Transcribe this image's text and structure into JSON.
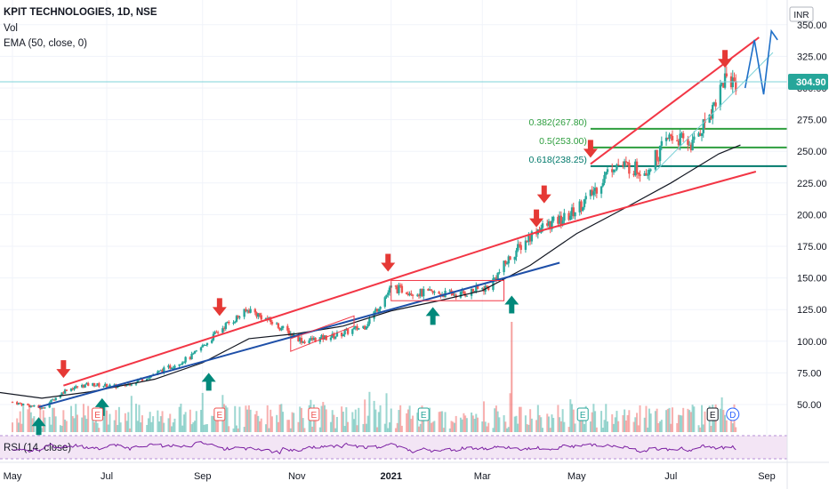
{
  "legend": {
    "title": "KPIT TECHNOLOGIES, 1D, NSE",
    "volume": "Vol",
    "ema": "EMA (50, close, 0)"
  },
  "rsi_label": "RSI (14, close)",
  "currency": "INR",
  "last_price_label": "304.90",
  "fib_labels": [
    "0.382(267.80)",
    "0.5(253.00)",
    "0.618(238.25)"
  ],
  "event_labels": [
    "E",
    "E",
    "E",
    "E",
    "E",
    "E",
    "D"
  ],
  "colors": {
    "up": "#26a69a",
    "down": "#ef5350",
    "ema": "#131722",
    "trend_red": "#f23645",
    "trend_blue": "#1e4fa8",
    "fib": "#2e9e3e",
    "fib_teal": "#00796b",
    "arrow_down": "#e53935",
    "arrow_up": "#00897b",
    "projection": "#1e6fc8",
    "price_line": "#7fd3d8",
    "last_price_bg": "#26a69a",
    "rsi": "#7b1fa2",
    "rsi_band": "#f3e5f5"
  },
  "chart_data": {
    "type": "candlestick",
    "symbol": "KPIT TECHNOLOGIES",
    "interval": "1D",
    "exchange": "NSE",
    "y_axis": {
      "ticks": [
        50.0,
        75.0,
        100.0,
        125.0,
        150.0,
        175.0,
        200.0,
        225.0,
        250.0,
        275.0,
        300.0,
        325.0,
        350.0
      ],
      "range": [
        38,
        358
      ],
      "unit": "INR"
    },
    "x_axis": {
      "ticks": [
        "May",
        "Jul",
        "Sep",
        "Nov",
        "2021",
        "Mar",
        "May",
        "Jul",
        "Sep"
      ]
    },
    "last_price": 304.9,
    "close_series": [
      {
        "x": "2020-05-01",
        "y": 52
      },
      {
        "x": "2020-05-20",
        "y": 47
      },
      {
        "x": "2020-06-05",
        "y": 62
      },
      {
        "x": "2020-06-20",
        "y": 66
      },
      {
        "x": "2020-07-10",
        "y": 64
      },
      {
        "x": "2020-08-01",
        "y": 74
      },
      {
        "x": "2020-08-25",
        "y": 88
      },
      {
        "x": "2020-09-15",
        "y": 112
      },
      {
        "x": "2020-10-01",
        "y": 125
      },
      {
        "x": "2020-10-20",
        "y": 112
      },
      {
        "x": "2020-11-05",
        "y": 100
      },
      {
        "x": "2020-11-25",
        "y": 104
      },
      {
        "x": "2020-12-15",
        "y": 112
      },
      {
        "x": "2021-01-01",
        "y": 142
      },
      {
        "x": "2021-01-20",
        "y": 138
      },
      {
        "x": "2021-02-15",
        "y": 137
      },
      {
        "x": "2021-03-05",
        "y": 143
      },
      {
        "x": "2021-03-20",
        "y": 168
      },
      {
        "x": "2021-04-05",
        "y": 188
      },
      {
        "x": "2021-04-25",
        "y": 198
      },
      {
        "x": "2021-05-10",
        "y": 215
      },
      {
        "x": "2021-05-25",
        "y": 240
      },
      {
        "x": "2021-06-15",
        "y": 235
      },
      {
        "x": "2021-07-01",
        "y": 262
      },
      {
        "x": "2021-07-15",
        "y": 255
      },
      {
        "x": "2021-07-28",
        "y": 285
      },
      {
        "x": "2021-08-05",
        "y": 308
      },
      {
        "x": "2021-08-12",
        "y": 304.9
      }
    ],
    "ema_50": [
      {
        "x": "2020-04-20",
        "y": 60
      },
      {
        "x": "2020-05-20",
        "y": 55
      },
      {
        "x": "2020-06-20",
        "y": 60
      },
      {
        "x": "2020-08-01",
        "y": 70
      },
      {
        "x": "2020-09-01",
        "y": 83
      },
      {
        "x": "2020-10-01",
        "y": 102
      },
      {
        "x": "2020-11-01",
        "y": 106
      },
      {
        "x": "2020-12-01",
        "y": 112
      },
      {
        "x": "2021-01-01",
        "y": 124
      },
      {
        "x": "2021-02-01",
        "y": 132
      },
      {
        "x": "2021-03-01",
        "y": 140
      },
      {
        "x": "2021-04-01",
        "y": 160
      },
      {
        "x": "2021-05-01",
        "y": 185
      },
      {
        "x": "2021-06-01",
        "y": 205
      },
      {
        "x": "2021-07-01",
        "y": 225
      },
      {
        "x": "2021-08-01",
        "y": 248
      },
      {
        "x": "2021-08-15",
        "y": 255
      }
    ],
    "fibonacci_levels": [
      {
        "ratio": 0.382,
        "price": 267.8
      },
      {
        "ratio": 0.5,
        "price": 253.0
      },
      {
        "ratio": 0.618,
        "price": 238.25
      }
    ],
    "trendlines": [
      {
        "color": "red",
        "points": [
          {
            "x": "2020-06-03",
            "y": 65
          },
          {
            "x": "2021-04-10",
            "y": 188
          },
          {
            "x": "2021-08-25",
            "y": 234
          }
        ]
      },
      {
        "color": "red",
        "points": [
          {
            "x": "2021-05-10",
            "y": 240
          },
          {
            "x": "2021-08-27",
            "y": 340
          }
        ]
      },
      {
        "color": "blue",
        "points": [
          {
            "x": "2020-05-18",
            "y": 48
          },
          {
            "x": "2021-04-20",
            "y": 162
          }
        ]
      }
    ],
    "events": {
      "earnings": [
        "2020-06-25",
        "2020-09-12",
        "2020-11-12",
        "2021-01-22",
        "2021-05-05",
        "2021-07-28"
      ],
      "dividend": [
        "2021-08-10"
      ]
    },
    "volume": {
      "max_spike_date": "2021-03-20"
    },
    "indicators": [
      "Vol",
      "EMA (50, close, 0)",
      "RSI (14, close)"
    ]
  }
}
